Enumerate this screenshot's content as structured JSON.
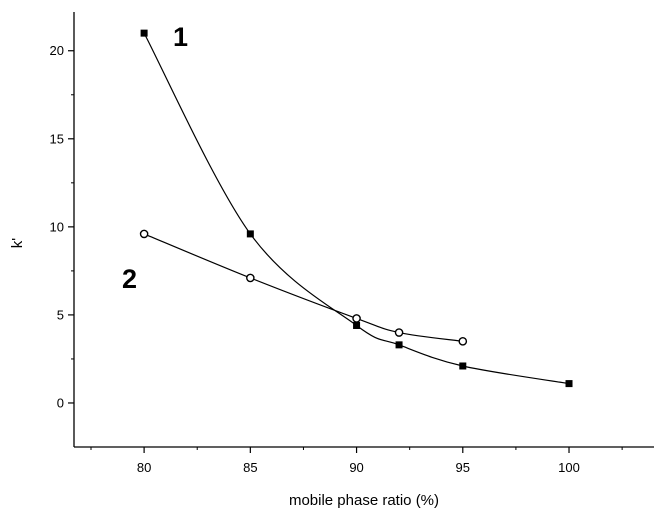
{
  "chart_data": {
    "type": "scatter",
    "title": "",
    "xlabel": "mobile phase ratio (%)",
    "ylabel": "k'",
    "xlim": [
      76.7,
      104.0
    ],
    "ylim": [
      -2.5,
      22.2
    ],
    "xticks": [
      80,
      85,
      90,
      95,
      100
    ],
    "yticks": [
      0,
      5,
      10,
      15,
      20
    ],
    "grid": false,
    "legend": "none",
    "series": [
      {
        "label": "1",
        "marker": "filled-square",
        "x": [
          80,
          85,
          90,
          92,
          95,
          100
        ],
        "y": [
          21.0,
          9.6,
          4.4,
          3.3,
          2.1,
          1.1
        ]
      },
      {
        "label": "2",
        "marker": "open-circle",
        "x": [
          80,
          85,
          90,
          92,
          95
        ],
        "y": [
          9.6,
          7.1,
          4.8,
          4.0,
          3.5
        ]
      }
    ]
  }
}
